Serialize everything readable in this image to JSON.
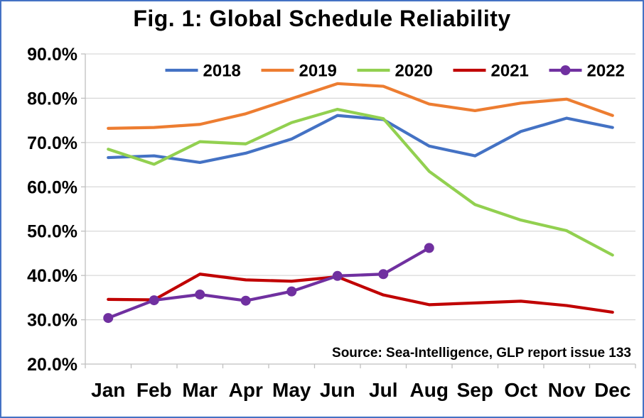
{
  "frame": {
    "border_color": "#4472C4",
    "background": "#ffffff"
  },
  "chart_data": {
    "type": "line",
    "title": "Fig. 1: Global Schedule Reliability",
    "source_note": "Source: Sea-Intelligence, GLP report issue 133",
    "xlabel": "",
    "ylabel": "",
    "x": [
      "Jan",
      "Feb",
      "Mar",
      "Apr",
      "May",
      "Jun",
      "Jul",
      "Aug",
      "Sep",
      "Oct",
      "Nov",
      "Dec"
    ],
    "ylim": [
      20,
      90
    ],
    "grid": true,
    "legend_position": "top",
    "yticks": [
      {
        "value": 20,
        "label": "20.0%"
      },
      {
        "value": 30,
        "label": "30.0%"
      },
      {
        "value": 40,
        "label": "40.0%"
      },
      {
        "value": 50,
        "label": "50.0%"
      },
      {
        "value": 60,
        "label": "60.0%"
      },
      {
        "value": 70,
        "label": "70.0%"
      },
      {
        "value": 80,
        "label": "80.0%"
      },
      {
        "value": 90,
        "label": "90.0%"
      }
    ],
    "series": [
      {
        "name": "2018",
        "color": "#4472C4",
        "marker": "none",
        "values": [
          66.6,
          67.0,
          65.5,
          67.6,
          70.8,
          76.1,
          75.2,
          69.2,
          67.0,
          72.5,
          75.5,
          73.4
        ]
      },
      {
        "name": "2019",
        "color": "#ED7D31",
        "marker": "none",
        "values": [
          73.2,
          73.4,
          74.1,
          76.5,
          79.9,
          83.3,
          82.7,
          78.7,
          77.2,
          78.9,
          79.8,
          76.1
        ]
      },
      {
        "name": "2020",
        "color": "#92D050",
        "marker": "none",
        "values": [
          68.5,
          65.1,
          70.2,
          69.7,
          74.5,
          77.5,
          75.4,
          63.5,
          56.0,
          52.5,
          50.1,
          44.6
        ]
      },
      {
        "name": "2021",
        "color": "#C00000",
        "marker": "none",
        "values": [
          34.6,
          34.5,
          40.3,
          39.0,
          38.7,
          39.7,
          35.6,
          33.4,
          33.8,
          34.2,
          33.2,
          31.7
        ]
      },
      {
        "name": "2022",
        "color": "#7030A0",
        "marker": "circle",
        "values": [
          30.4,
          34.4,
          35.7,
          34.3,
          36.4,
          39.9,
          40.3,
          46.2,
          null,
          null,
          null,
          null
        ]
      }
    ]
  }
}
